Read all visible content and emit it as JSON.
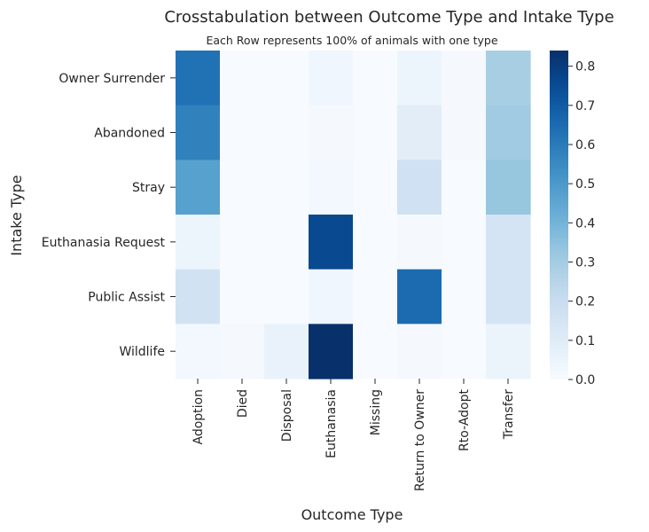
{
  "chart_data": {
    "type": "heatmap",
    "title": "Crosstabulation between Outcome Type and Intake Type",
    "subtitle": "Each Row represents 100% of animals with one type",
    "xlabel": "Outcome Type",
    "ylabel": "Intake Type",
    "x_categories": [
      "Adoption",
      "Died",
      "Disposal",
      "Euthanasia",
      "Missing",
      "Return to Owner",
      "Rto-Adopt",
      "Transfer"
    ],
    "y_categories": [
      "Owner Surrender",
      "Abandoned",
      "Stray",
      "Euthanasia Request",
      "Public Assist",
      "Wildlife"
    ],
    "values": [
      [
        0.63,
        0.0,
        0.0,
        0.03,
        0.0,
        0.04,
        0.01,
        0.29
      ],
      [
        0.58,
        0.0,
        0.0,
        0.01,
        0.0,
        0.09,
        0.01,
        0.31
      ],
      [
        0.47,
        0.0,
        0.0,
        0.02,
        0.0,
        0.17,
        0.0,
        0.33
      ],
      [
        0.04,
        0.0,
        0.0,
        0.76,
        0.0,
        0.01,
        0.0,
        0.15
      ],
      [
        0.16,
        0.0,
        0.0,
        0.03,
        0.0,
        0.65,
        0.0,
        0.15
      ],
      [
        0.02,
        0.01,
        0.06,
        0.84,
        0.0,
        0.01,
        0.0,
        0.05
      ]
    ],
    "colorbar": {
      "range": [
        0,
        0.84
      ],
      "ticks": [
        "0.0",
        "0.1",
        "0.2",
        "0.3",
        "0.4",
        "0.5",
        "0.6",
        "0.7",
        "0.8"
      ]
    },
    "colormap": "Blues",
    "colors": {
      "low": "#f7fbff",
      "high": "#08306b",
      "text": "#262626"
    },
    "grid": false,
    "legend": "colorbar-right"
  }
}
